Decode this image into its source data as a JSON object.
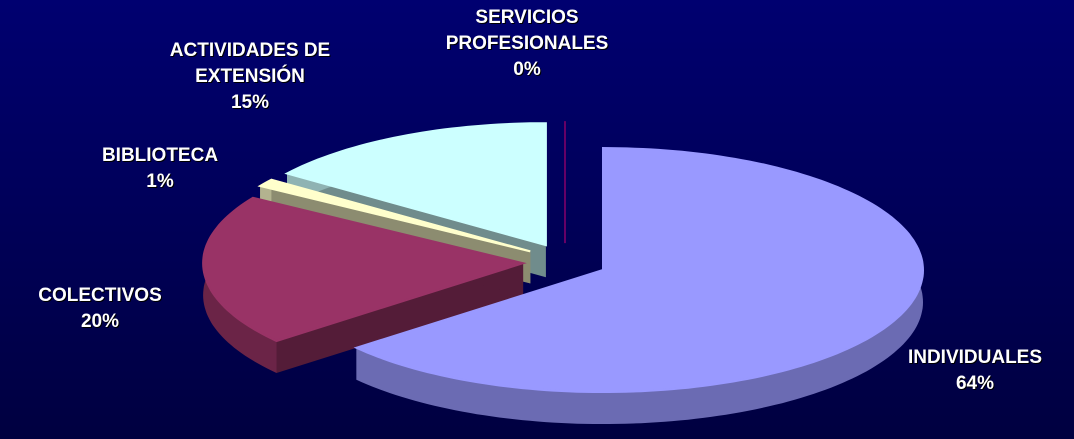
{
  "chart_data": {
    "type": "pie",
    "categories": [
      "INDIVIDUALES",
      "COLECTIVOS",
      "BIBLIOTECA",
      "ACTIVIDADES DE EXTENSIÓN",
      "SERVICIOS PROFESIONALES"
    ],
    "values": [
      64,
      20,
      1,
      15,
      0
    ],
    "value_labels": [
      "64%",
      "20%",
      "1%",
      "15%",
      "0%"
    ],
    "colors": [
      "#9999ff",
      "#993366",
      "#ffffcc",
      "#ccffff",
      "#660066"
    ]
  }
}
